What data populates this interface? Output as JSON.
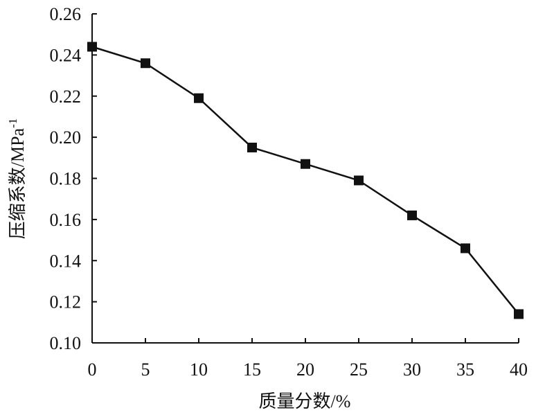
{
  "chart_data": {
    "type": "line",
    "x_label": "质量分数/%",
    "y_label": "压缩系数/MPa",
    "y_label_superscript": "-1",
    "x": [
      0,
      5,
      10,
      15,
      20,
      25,
      30,
      35,
      40
    ],
    "series": [
      {
        "color": "#111111",
        "values": [
          0.244,
          0.236,
          0.219,
          0.195,
          0.187,
          0.179,
          0.162,
          0.146,
          0.114
        ]
      }
    ],
    "xlim": [
      0,
      40
    ],
    "xticks": [
      0,
      5,
      10,
      15,
      20,
      25,
      30,
      35,
      40
    ],
    "ylim": [
      0.1,
      0.26
    ],
    "yticks": [
      {
        "value": 0.1,
        "label": "0.10"
      },
      0.12,
      0.14,
      0.16,
      0.18,
      {
        "value": 0.2,
        "label": "0.20"
      },
      0.22,
      0.24,
      0.26
    ],
    "grid": false
  }
}
